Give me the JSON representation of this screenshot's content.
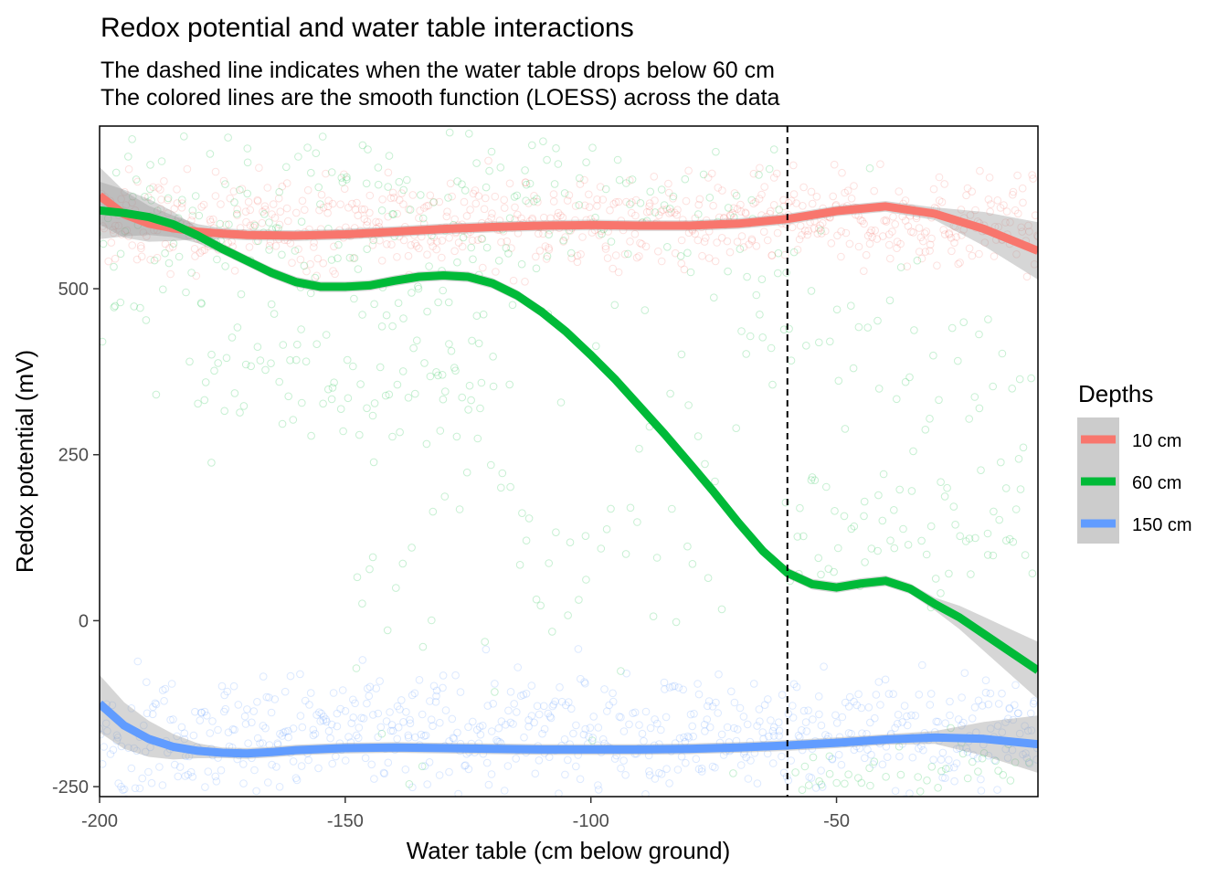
{
  "chart_data": {
    "type": "scatter",
    "title": "Redox potential and water table interactions",
    "subtitle_lines": [
      "The dashed line indicates when the water table drops below 60 cm",
      "The colored lines are the smooth function (LOESS) across the data"
    ],
    "xlabel": "Water table (cm below ground)",
    "ylabel": "Redox potential (mV)",
    "xlim": [
      -200,
      -9
    ],
    "ylim": [
      -265,
      745
    ],
    "x_ticks": [
      -200,
      -150,
      -100,
      -50
    ],
    "x_tick_labels": [
      "-200",
      "-150",
      "-100",
      "-50"
    ],
    "y_ticks": [
      -250,
      0,
      250,
      500
    ],
    "y_tick_labels": [
      "-250",
      "0",
      "250",
      "500"
    ],
    "vline": {
      "x": -60,
      "style": "dashed"
    },
    "grid": false,
    "legend": {
      "title": "Depths",
      "position": "right",
      "entries": [
        {
          "label": "10 cm",
          "color": "#F8766D"
        },
        {
          "label": "60 cm",
          "color": "#00BA38"
        },
        {
          "label": "150 cm",
          "color": "#619CFF"
        }
      ]
    },
    "series": [
      {
        "name": "10 cm",
        "color": "#F8766D",
        "smooth": {
          "x": [
            -200,
            -195,
            -190,
            -185,
            -180,
            -175,
            -170,
            -160,
            -150,
            -140,
            -130,
            -120,
            -110,
            -100,
            -90,
            -80,
            -70,
            -60,
            -50,
            -40,
            -30,
            -20,
            -9
          ],
          "y": [
            640,
            612,
            598,
            591,
            586,
            583,
            581,
            580,
            582,
            586,
            590,
            593,
            595,
            596,
            595,
            595,
            598,
            605,
            617,
            624,
            613,
            590,
            557
          ]
        },
        "cloud": {
          "x_range": [
            -200,
            -9
          ],
          "y_center": 600,
          "y_spread": 35,
          "density": 1.0
        }
      },
      {
        "name": "60 cm",
        "color": "#00BA38",
        "smooth": {
          "x": [
            -200,
            -195,
            -190,
            -185,
            -180,
            -175,
            -170,
            -165,
            -160,
            -155,
            -150,
            -145,
            -140,
            -135,
            -130,
            -125,
            -120,
            -115,
            -110,
            -105,
            -100,
            -95,
            -90,
            -85,
            -80,
            -75,
            -70,
            -65,
            -60,
            -55,
            -50,
            -45,
            -40,
            -35,
            -30,
            -25,
            -20,
            -15,
            -9
          ],
          "y": [
            618,
            614,
            608,
            597,
            580,
            560,
            542,
            524,
            510,
            503,
            503,
            505,
            512,
            518,
            520,
            518,
            508,
            490,
            465,
            435,
            400,
            363,
            322,
            281,
            238,
            194,
            148,
            105,
            72,
            55,
            50,
            56,
            60,
            48,
            25,
            5,
            -20,
            -45,
            -75
          ]
        },
        "clusters": [
          {
            "x_range": [
              -200,
              -105
            ],
            "y_center": 560,
            "y_spread": 110
          },
          {
            "x_range": [
              -200,
              -60
            ],
            "y_center": 620,
            "y_spread": 60
          },
          {
            "x_range": [
              -180,
              -120
            ],
            "y_center": 360,
            "y_spread": 60
          },
          {
            "x_range": [
              -60,
              -10
            ],
            "y_center": 130,
            "y_spread": 55
          },
          {
            "x_range": [
              -60,
              -10
            ],
            "y_center": -235,
            "y_spread": 35
          },
          {
            "x_range": [
              -70,
              -10
            ],
            "y_center": 360,
            "y_spread": 110
          },
          {
            "x_range": [
              -150,
              -70
            ],
            "y_center": 150,
            "y_spread": 230
          }
        ]
      },
      {
        "name": "150 cm",
        "color": "#619CFF",
        "smooth": {
          "x": [
            -200,
            -195,
            -190,
            -185,
            -180,
            -175,
            -170,
            -165,
            -160,
            -150,
            -140,
            -130,
            -120,
            -110,
            -100,
            -90,
            -80,
            -70,
            -60,
            -50,
            -40,
            -30,
            -20,
            -9
          ],
          "y": [
            -125,
            -158,
            -178,
            -190,
            -196,
            -199,
            -200,
            -198,
            -195,
            -192,
            -191,
            -192,
            -193,
            -194,
            -194,
            -194,
            -193,
            -191,
            -188,
            -184,
            -179,
            -176,
            -178,
            -186
          ]
        },
        "cloud": {
          "x_range": [
            -200,
            -9
          ],
          "y_center": -170,
          "y_spread": 45,
          "density": 1.0
        }
      }
    ]
  }
}
